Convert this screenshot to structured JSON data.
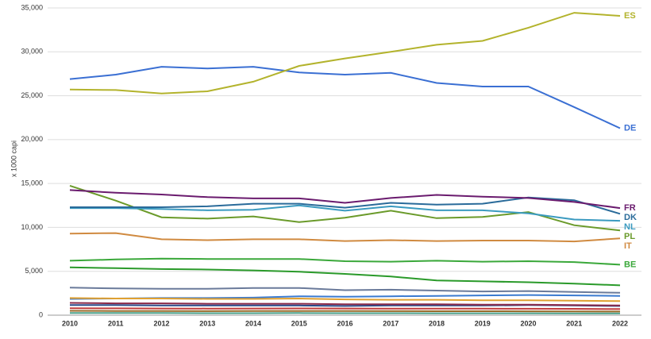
{
  "chart_data": {
    "type": "line",
    "y_label": "x 1000 capi",
    "categories": [
      "2010",
      "2011",
      "2012",
      "2013",
      "2014",
      "2015",
      "2016",
      "2017",
      "2018",
      "2019",
      "2020",
      "2021",
      "2022"
    ],
    "ylim": [
      0,
      35000
    ],
    "yticks": [
      0,
      {
        "value": 5000,
        "label": "5,000"
      },
      {
        "value": 10000,
        "label": "10,000"
      },
      {
        "value": 15000,
        "label": "15,000"
      },
      {
        "value": 20000,
        "label": "20,000"
      },
      {
        "value": 25000,
        "label": "25,000"
      },
      {
        "value": 30000,
        "label": "30,000"
      },
      {
        "value": 35000,
        "label": "35,000"
      }
    ],
    "grid": true,
    "series": [
      {
        "name": "ES",
        "color": "#b3b32c",
        "values": [
          25700,
          25650,
          25250,
          25500,
          26600,
          28400,
          29250,
          30000,
          30800,
          31250,
          32750,
          34450,
          34100
        ]
      },
      {
        "name": "DE",
        "color": "#3a6fd3",
        "values": [
          26900,
          27400,
          28300,
          28100,
          28300,
          27650,
          27400,
          27600,
          26450,
          26050,
          26050,
          23700,
          21300
        ]
      },
      {
        "name": "FR",
        "color": "#6a1b6e",
        "values": [
          14250,
          13950,
          13750,
          13450,
          13300,
          13300,
          12800,
          13350,
          13700,
          13500,
          13350,
          12900,
          12200
        ]
      },
      {
        "name": "DK",
        "color": "#2a6b9a",
        "values": [
          12300,
          12300,
          12300,
          12400,
          12700,
          12700,
          12250,
          12800,
          12600,
          12700,
          13400,
          13100,
          11550
        ]
      },
      {
        "name": "NL",
        "color": "#3a9ac0",
        "values": [
          12200,
          12200,
          12100,
          11950,
          12000,
          12500,
          11900,
          12400,
          11950,
          11950,
          11600,
          10900,
          10750
        ]
      },
      {
        "name": "PL",
        "color": "#6a9a2a",
        "values": [
          14750,
          13050,
          11150,
          11000,
          11250,
          10600,
          11100,
          11900,
          11050,
          11200,
          11750,
          10250,
          9650
        ]
      },
      {
        "name": "IT",
        "color": "#d08a40",
        "values": [
          9300,
          9350,
          8650,
          8550,
          8650,
          8650,
          8450,
          8550,
          8450,
          8500,
          8500,
          8400,
          8750
        ]
      },
      {
        "name": "BE",
        "color": "#3aa83a",
        "values": [
          6200,
          6350,
          6450,
          6400,
          6400,
          6400,
          6150,
          6100,
          6200,
          6100,
          6150,
          6050,
          5750
        ]
      },
      {
        "color": "#2a9a2a",
        "values": [
          5450,
          5350,
          5250,
          5200,
          5100,
          4950,
          4700,
          4400,
          3950,
          3850,
          3750,
          3600,
          3400
        ]
      },
      {
        "color": "#6a7a9a",
        "values": [
          3150,
          3050,
          3000,
          3000,
          3100,
          3100,
          2850,
          2900,
          2800,
          2700,
          2750,
          2650,
          2550
        ]
      },
      {
        "color": "#e0a030",
        "values": [
          1950,
          1900,
          1900,
          1850,
          1850,
          1900,
          1800,
          1750,
          1750,
          1700,
          1700,
          1650,
          1600
        ]
      },
      {
        "color": "#3a7ad0",
        "values": [
          1850,
          1900,
          1950,
          1950,
          2000,
          2150,
          2100,
          2150,
          2200,
          2250,
          2300,
          2250,
          2200
        ]
      },
      {
        "color": "#8a2a4a",
        "values": [
          1400,
          1350,
          1350,
          1300,
          1300,
          1300,
          1250,
          1250,
          1250,
          1200,
          1200,
          1150,
          1100
        ]
      },
      {
        "color": "#2a4a8a",
        "values": [
          1150,
          1150,
          1100,
          1100,
          1100,
          1100,
          1050,
          1100,
          1100,
          1100,
          1150,
          1100,
          1050
        ]
      },
      {
        "color": "#c03a3a",
        "values": [
          800,
          780,
          760,
          750,
          760,
          770,
          760,
          750,
          740,
          740,
          730,
          720,
          700
        ]
      },
      {
        "color": "#9a6a2a",
        "values": [
          500,
          480,
          470,
          460,
          470,
          480,
          470,
          460,
          450,
          450,
          440,
          430,
          420
        ]
      },
      {
        "color": "#4aa08a",
        "values": [
          250,
          240,
          240,
          230,
          230,
          240,
          230,
          230,
          220,
          220,
          220,
          210,
          200
        ]
      }
    ]
  }
}
